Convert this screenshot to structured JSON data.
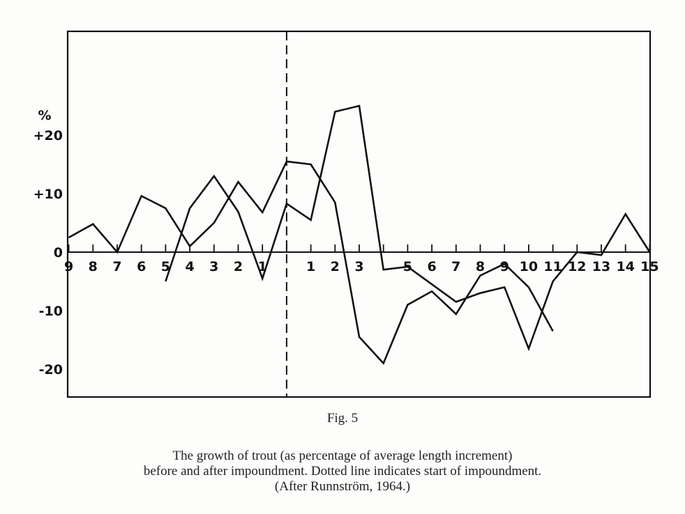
{
  "chart_data": {
    "type": "line",
    "title": "",
    "xlabel": "",
    "ylabel": "%",
    "y_unit_label": "%",
    "ylim": [
      -25,
      38
    ],
    "yticks": [
      {
        "value": 20,
        "label": "+20"
      },
      {
        "value": 10,
        "label": "+10"
      },
      {
        "value": 0,
        "label": "0"
      },
      {
        "value": -10,
        "label": "-10"
      },
      {
        "value": -20,
        "label": "-20"
      }
    ],
    "x_ticks": [
      {
        "pos": -9,
        "label": "9"
      },
      {
        "pos": -8,
        "label": "8"
      },
      {
        "pos": -7,
        "label": "7"
      },
      {
        "pos": -6,
        "label": "6"
      },
      {
        "pos": -5,
        "label": "5"
      },
      {
        "pos": -4,
        "label": "4"
      },
      {
        "pos": -3,
        "label": "3"
      },
      {
        "pos": -2,
        "label": "2"
      },
      {
        "pos": -1,
        "label": "1"
      },
      {
        "pos": 0,
        "label": ""
      },
      {
        "pos": 1,
        "label": "1"
      },
      {
        "pos": 2,
        "label": "2"
      },
      {
        "pos": 3,
        "label": "3"
      },
      {
        "pos": 4,
        "label": ""
      },
      {
        "pos": 5,
        "label": "5"
      },
      {
        "pos": 6,
        "label": "6"
      },
      {
        "pos": 7,
        "label": "7"
      },
      {
        "pos": 8,
        "label": "8"
      },
      {
        "pos": 9,
        "label": "9"
      },
      {
        "pos": 10,
        "label": "10"
      },
      {
        "pos": 11,
        "label": "11"
      },
      {
        "pos": 12,
        "label": "12"
      },
      {
        "pos": 13,
        "label": "13"
      },
      {
        "pos": 14,
        "label": "14"
      },
      {
        "pos": 15,
        "label": "15"
      }
    ],
    "xlim": [
      -9,
      15
    ],
    "impoundment_start": 0,
    "impoundment_line_style": "dashed",
    "grid": false,
    "legend": "none",
    "series": [
      {
        "x": [
          -9,
          -8,
          -7,
          -6,
          -5,
          -4,
          -3,
          -2,
          -1,
          0,
          1,
          2,
          3,
          4,
          5,
          6,
          7,
          8,
          9,
          10,
          11
        ],
        "values": [
          2.5,
          4.8,
          0,
          9.6,
          7.5,
          1,
          5,
          12,
          6.8,
          15.5,
          15,
          8.5,
          -14.5,
          -19,
          -9,
          -6.7,
          -10.6,
          -4,
          -2,
          -6,
          -13.5
        ]
      },
      {
        "x": [
          -5,
          -4,
          -3,
          -2,
          -1,
          0,
          1,
          2,
          3,
          4,
          5,
          6,
          7,
          8,
          9,
          10,
          11,
          12,
          13,
          14,
          15
        ],
        "values": [
          -5,
          7.5,
          13,
          6.9,
          -4.5,
          8.3,
          5.5,
          24,
          25,
          -3,
          -2.5,
          -5.5,
          -8.5,
          -7,
          -6,
          -16.5,
          -5,
          0,
          -0.5,
          6.5,
          0
        ]
      }
    ]
  },
  "caption": {
    "fig_label": "Fig. 5",
    "line1": "The growth of trout (as percentage of average length increment)",
    "line2": "before and after impoundment. Dotted line indicates start of impoundment.",
    "line3": "(After Runnström, 1964.)"
  }
}
